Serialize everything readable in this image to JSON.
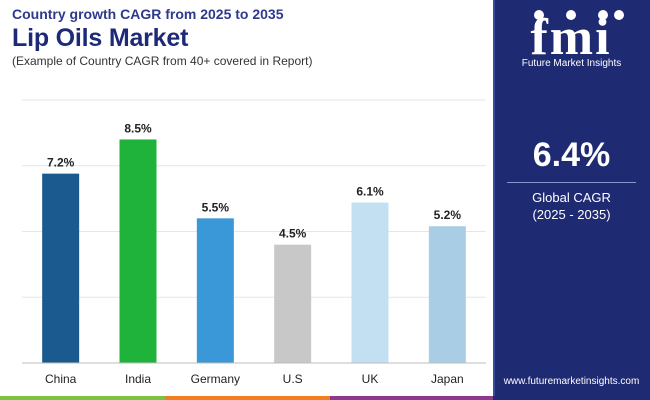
{
  "header": {
    "subtitle": "Country growth CAGR from 2025 to 2035",
    "title": "Lip Oils Market",
    "note": "(Example of Country CAGR from 40+ covered in Report)"
  },
  "sidebar": {
    "logo_text": "fmi",
    "logo_caption": "Future Market Insights",
    "cagr_value": "6.4%",
    "cagr_label": "Global CAGR",
    "cagr_period": "(2025 - 2035)",
    "website": "www.futuremarketinsights.com"
  },
  "colors": {
    "title": "#1e2a78",
    "panel": "#1e2a72",
    "bottom_bar": [
      "#7dc242",
      "#f07f22",
      "#8b3a8f",
      "#1e2a72"
    ]
  },
  "chart_data": {
    "type": "bar",
    "title": "Lip Oils Market",
    "categories": [
      "China",
      "India",
      "Germany",
      "U.S",
      "UK",
      "Japan"
    ],
    "values": [
      7.2,
      8.5,
      5.5,
      4.5,
      6.1,
      5.2
    ],
    "labels": [
      "7.2%",
      "8.5%",
      "5.5%",
      "4.5%",
      "6.1%",
      "5.2%"
    ],
    "bar_colors": [
      "#1b5a8e",
      "#1fb33b",
      "#3a98d8",
      "#c8c8c8",
      "#c3e0f3",
      "#a8cde4"
    ],
    "ylim": [
      0,
      10
    ],
    "grid": true,
    "xlabel": "",
    "ylabel": ""
  }
}
